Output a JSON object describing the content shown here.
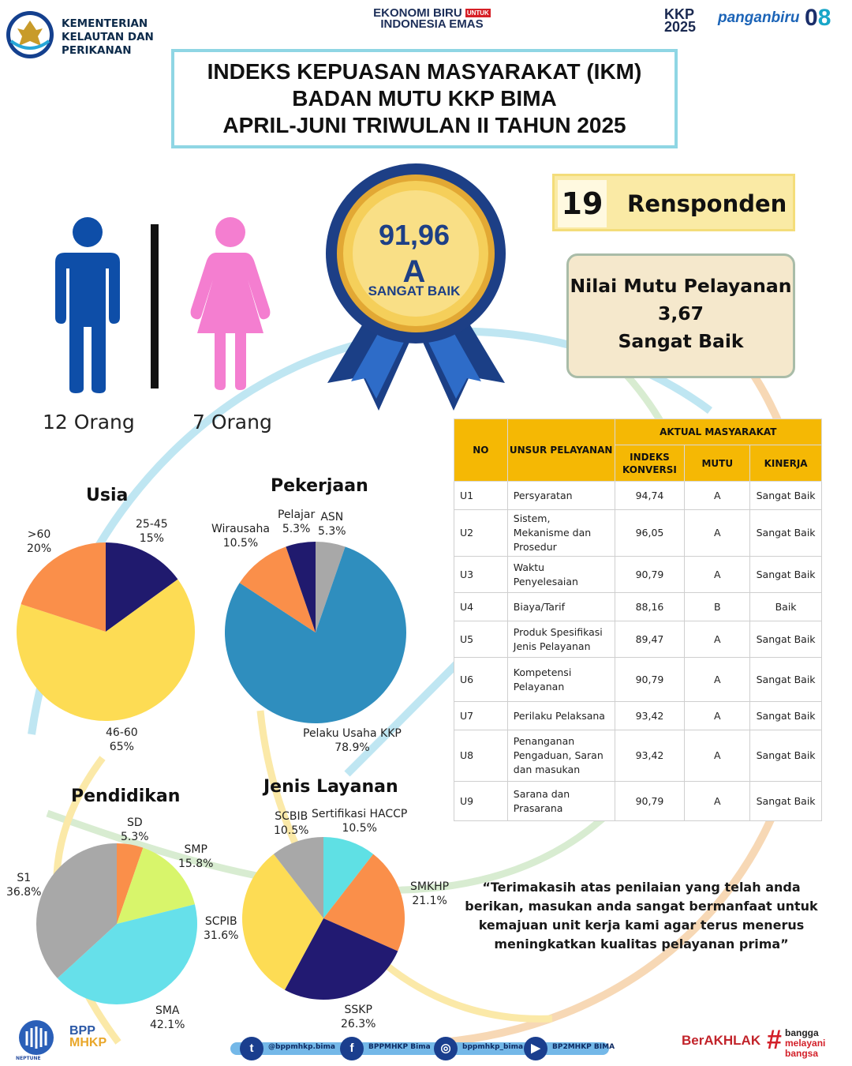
{
  "header": {
    "ministry_lines": [
      "KEMENTERIAN",
      "KELAUTAN DAN",
      "PERIKANAN"
    ],
    "ekonomi_line1": "EKONOMI BIRU",
    "ekonomi_tag": "UNTUK",
    "ekonomi_line2": "INDONESIA EMAS",
    "kkp_line1": "KKP",
    "kkp_line2": "2025",
    "panganbiru": "panganbiru",
    "asta_zero": "0",
    "asta_eight": "8"
  },
  "title": {
    "line1": "INDEKS KEPUASAN MASYARAKAT (IKM)",
    "line2": "BADAN MUTU KKP BIMA",
    "line3": "APRIL-JUNI TRIWULAN II TAHUN 2025"
  },
  "respondents": {
    "male_count": "12 Orang",
    "female_count": "7 Orang",
    "male_color": "#0e4ea8",
    "female_color": "#f47ed0",
    "total": "19",
    "label": "Rensponden"
  },
  "medal": {
    "score": "91,96",
    "grade": "A",
    "label": "SANGAT BAIK"
  },
  "nilai_mutu": {
    "line1": "Nilai Mutu Pelayanan",
    "value": "3,67",
    "category": "Sangat Baik"
  },
  "table": {
    "header": {
      "no": "NO",
      "unsur": "UNSUR PELAYANAN",
      "aktual": "AKTUAL MASYARAKAT",
      "indeks": "INDEKS KONVERSI",
      "mutu": "MUTU",
      "kinerja": "KINERJA"
    },
    "rows": [
      {
        "no": "U1",
        "unsur": "Persyaratan",
        "indeks": "94,74",
        "mutu": "A",
        "kinerja": "Sangat Baik"
      },
      {
        "no": "U2",
        "unsur": "Sistem, Mekanisme dan Prosedur",
        "indeks": "96,05",
        "mutu": "A",
        "kinerja": "Sangat Baik"
      },
      {
        "no": "U3",
        "unsur": "Waktu Penyelesaian",
        "indeks": "90,79",
        "mutu": "A",
        "kinerja": "Sangat Baik"
      },
      {
        "no": "U4",
        "unsur": "Biaya/Tarif",
        "indeks": "88,16",
        "mutu": "B",
        "kinerja": "Baik"
      },
      {
        "no": "U5",
        "unsur": "Produk Spesifikasi Jenis Pelayanan",
        "indeks": "89,47",
        "mutu": "A",
        "kinerja": "Sangat Baik"
      },
      {
        "no": "U6",
        "unsur": "Kompetensi Pelayanan",
        "indeks": "90,79",
        "mutu": "A",
        "kinerja": "Sangat Baik"
      },
      {
        "no": "U7",
        "unsur": "Perilaku Pelaksana",
        "indeks": "93,42",
        "mutu": "A",
        "kinerja": "Sangat Baik"
      },
      {
        "no": "U8",
        "unsur": "Penanganan Pengaduan, Saran dan masukan",
        "indeks": "93,42",
        "mutu": "A",
        "kinerja": "Sangat Baik"
      },
      {
        "no": "U9",
        "unsur": "Sarana dan Prasarana",
        "indeks": "90,79",
        "mutu": "A",
        "kinerja": "Sangat Baik"
      }
    ]
  },
  "quote": "“Terimakasih atas penilaian yang telah anda berikan, masukan anda sangat bermanfaat untuk kemajuan unit kerja kami agar terus menerus meningkatkan kualitas pelayanan prima”",
  "chart_data": [
    {
      "type": "pie",
      "title": "Usia",
      "slices": [
        {
          "label": "25-45",
          "value": 15,
          "display": "15%",
          "color": "#201a6e"
        },
        {
          "label": "46-60",
          "value": 65,
          "display": "65%",
          "color": "#fddc54"
        },
        {
          "label": ">60",
          "value": 20,
          "display": "20%",
          "color": "#fa8f4a"
        }
      ]
    },
    {
      "type": "pie",
      "title": "Pekerjaan",
      "slices": [
        {
          "label": "ASN",
          "value": 5.3,
          "display": "5.3%",
          "color": "#a8a8a8"
        },
        {
          "label": "Pelaku Usaha KKP",
          "value": 78.9,
          "display": "78.9%",
          "color": "#2f8ebe"
        },
        {
          "label": "Wirausaha",
          "value": 10.5,
          "display": "10.5%",
          "color": "#fa8f4a"
        },
        {
          "label": "Pelajar",
          "value": 5.3,
          "display": "5.3%",
          "color": "#201a6e"
        }
      ]
    },
    {
      "type": "pie",
      "title": "Pendidikan",
      "slices": [
        {
          "label": "SD",
          "value": 5.3,
          "display": "5.3%",
          "color": "#fa8f4a"
        },
        {
          "label": "SMP",
          "value": 15.8,
          "display": "15.8%",
          "color": "#d8f56b"
        },
        {
          "label": "SMA",
          "value": 42.1,
          "display": "42.1%",
          "color": "#66e0ea"
        },
        {
          "label": "S1",
          "value": 36.8,
          "display": "36.8%",
          "color": "#a8a8a8"
        }
      ]
    },
    {
      "type": "pie",
      "title": "Jenis Layanan",
      "slices": [
        {
          "label": "Sertifikasi HACCP",
          "value": 10.5,
          "display": "10.5%",
          "color": "#5fe0e4"
        },
        {
          "label": "SMKHP",
          "value": 21.1,
          "display": "21.1%",
          "color": "#fa8f4a"
        },
        {
          "label": "SSKP",
          "value": 26.3,
          "display": "26.3%",
          "color": "#221a72"
        },
        {
          "label": "SCPIB",
          "value": 31.6,
          "display": "31.6%",
          "color": "#fddc54"
        },
        {
          "label": "SCBIB",
          "value": 10.5,
          "display": "10.5%",
          "color": "#a8a8a8"
        }
      ]
    }
  ],
  "footer": {
    "neptune": "NEPTUNE",
    "bpp_line1": "BPP",
    "bpp_line2": "MHKP",
    "twitter": "@bppmhkp.bima",
    "facebook": "BPPMHKP Bima",
    "instagram": "bppmhkp_bima",
    "youtube": "BP2MHKP BIMA",
    "berakhlak": "BerAKHLAK",
    "bangga_lines": [
      "bangga",
      "melayani",
      "bangsa"
    ]
  }
}
